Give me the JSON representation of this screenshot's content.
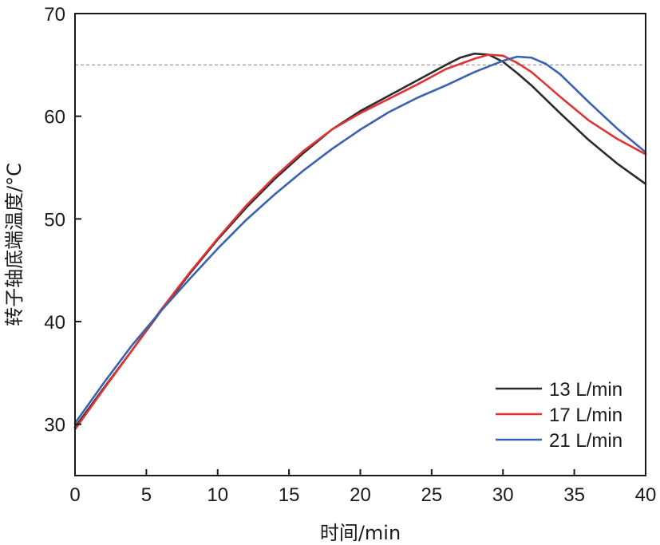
{
  "chart_data": {
    "type": "line",
    "xlabel": "时间/min",
    "ylabel": "转子轴底端温度/°C",
    "xlim": [
      0,
      40
    ],
    "ylim": [
      25,
      70
    ],
    "xticks": [
      0,
      5,
      10,
      15,
      20,
      25,
      30,
      35,
      40
    ],
    "yticks": [
      30,
      40,
      50,
      60,
      70
    ],
    "grid": false,
    "legend_position": "bottom-right",
    "reference_line": {
      "y": 65,
      "style": "dashed",
      "color": "#aaaaaa"
    },
    "series": [
      {
        "name": "13 L/min",
        "color": "#2b2b2b",
        "points": [
          [
            0,
            29.7
          ],
          [
            2,
            33.5
          ],
          [
            4,
            37.2
          ],
          [
            6,
            41.0
          ],
          [
            8,
            44.6
          ],
          [
            10,
            48.0
          ],
          [
            12,
            51.1
          ],
          [
            14,
            53.9
          ],
          [
            16,
            56.4
          ],
          [
            18,
            58.7
          ],
          [
            20,
            60.5
          ],
          [
            22,
            62.0
          ],
          [
            24,
            63.5
          ],
          [
            26,
            65.0
          ],
          [
            27,
            65.7
          ],
          [
            28,
            66.1
          ],
          [
            29,
            66.0
          ],
          [
            30,
            65.3
          ],
          [
            31,
            64.2
          ],
          [
            32,
            63.0
          ],
          [
            34,
            60.3
          ],
          [
            36,
            57.7
          ],
          [
            38,
            55.4
          ],
          [
            40,
            53.4
          ]
        ]
      },
      {
        "name": "17 L/min",
        "color": "#e03434",
        "points": [
          [
            0,
            29.5
          ],
          [
            2,
            33.4
          ],
          [
            4,
            37.2
          ],
          [
            6,
            41.1
          ],
          [
            8,
            44.7
          ],
          [
            10,
            48.1
          ],
          [
            12,
            51.3
          ],
          [
            14,
            54.1
          ],
          [
            16,
            56.6
          ],
          [
            18,
            58.7
          ],
          [
            20,
            60.3
          ],
          [
            22,
            61.7
          ],
          [
            24,
            63.1
          ],
          [
            26,
            64.6
          ],
          [
            28,
            65.6
          ],
          [
            29,
            66.0
          ],
          [
            30,
            65.9
          ],
          [
            31,
            65.2
          ],
          [
            32,
            64.3
          ],
          [
            34,
            61.9
          ],
          [
            36,
            59.6
          ],
          [
            38,
            57.8
          ],
          [
            40,
            56.3
          ]
        ]
      },
      {
        "name": "21 L/min",
        "color": "#3a62ae",
        "points": [
          [
            0,
            30.1
          ],
          [
            2,
            34.0
          ],
          [
            4,
            37.7
          ],
          [
            6,
            41.0
          ],
          [
            8,
            44.1
          ],
          [
            10,
            47.1
          ],
          [
            12,
            49.9
          ],
          [
            14,
            52.4
          ],
          [
            16,
            54.7
          ],
          [
            18,
            56.8
          ],
          [
            20,
            58.7
          ],
          [
            22,
            60.4
          ],
          [
            24,
            61.8
          ],
          [
            26,
            63.0
          ],
          [
            28,
            64.3
          ],
          [
            30,
            65.4
          ],
          [
            31,
            65.8
          ],
          [
            32,
            65.7
          ],
          [
            33,
            65.1
          ],
          [
            34,
            64.1
          ],
          [
            36,
            61.4
          ],
          [
            38,
            58.8
          ],
          [
            40,
            56.5
          ]
        ]
      }
    ]
  }
}
